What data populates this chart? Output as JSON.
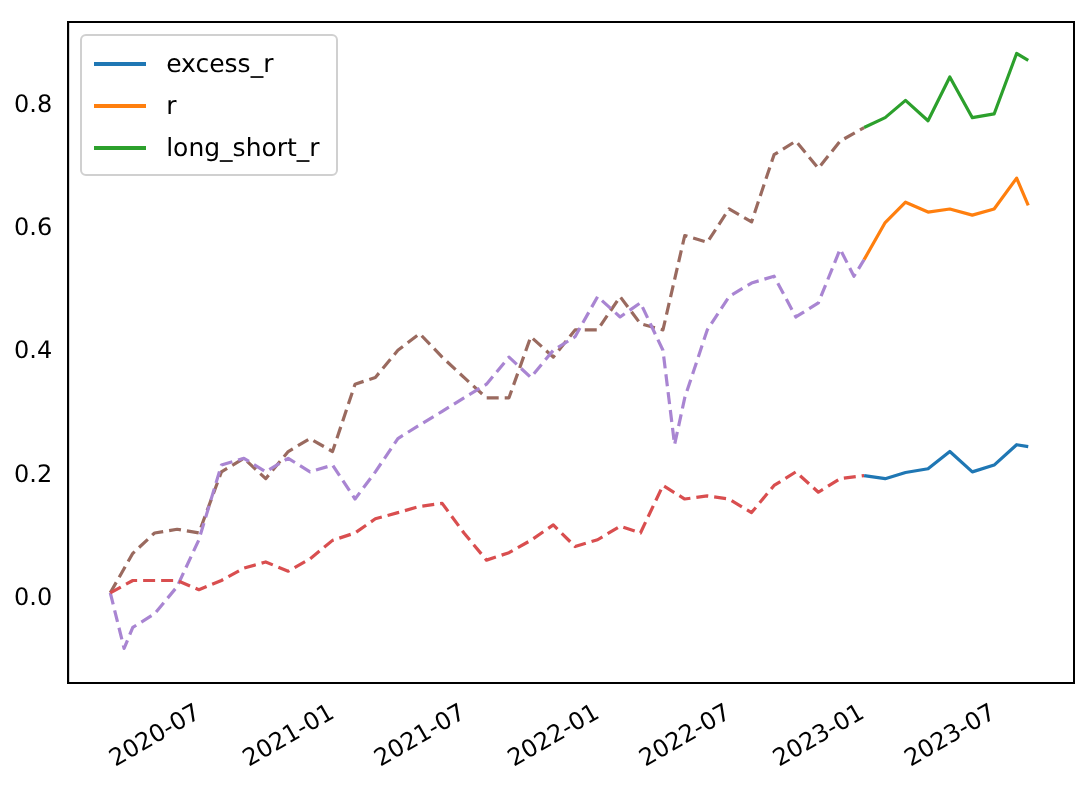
{
  "chart_data": {
    "type": "line",
    "xlim": [
      "2020-01-03",
      "2023-10-19"
    ],
    "xticks": [
      "2020-07",
      "2021-01",
      "2021-07",
      "2022-01",
      "2022-07",
      "2023-01",
      "2023-07"
    ],
    "ylim": [
      -0.136,
      0.935
    ],
    "yticks": [
      {
        "value": 0,
        "label": "0.0"
      },
      0.2,
      0.4,
      0.6,
      0.8
    ],
    "grid": false,
    "legend": "top left",
    "marker": "none",
    "series": [
      {
        "name": "excess_r",
        "color": "#1f77b4",
        "line_style": "solid",
        "x": [
          "2023-01-03",
          "2023-02",
          "2023-03",
          "2023-04",
          "2023-05",
          "2023-06",
          "2023-07",
          "2023-08",
          "2023-08-17"
        ],
        "values": [
          0.2,
          0.195,
          0.205,
          0.211,
          0.239,
          0.206,
          0.217,
          0.25,
          0.247
        ]
      },
      {
        "name": "r",
        "color": "#ff7f0e",
        "line_style": "solid",
        "x": [
          "2023-01-03",
          "2023-02",
          "2023-03",
          "2023-04",
          "2023-05",
          "2023-06",
          "2023-07",
          "2023-08",
          "2023-08-17"
        ],
        "values": [
          0.55,
          0.61,
          0.643,
          0.627,
          0.632,
          0.622,
          0.632,
          0.682,
          0.638
        ]
      },
      {
        "name": "long_short_r",
        "color": "#2ca02c",
        "line_style": "solid",
        "x": [
          "2023-01-03",
          "2023-02",
          "2023-03",
          "2023-04",
          "2023-05",
          "2023-06",
          "2023-07",
          "2023-08",
          "2023-08-17"
        ],
        "values": [
          0.764,
          0.78,
          0.808,
          0.775,
          0.846,
          0.78,
          0.786,
          0.884,
          0.873
        ]
      },
      {
        "color": "#d94e4f",
        "line_style": "dashed",
        "x": [
          "2020-03",
          "2020-04",
          "2020-05",
          "2020-06",
          "2020-07",
          "2020-08",
          "2020-09",
          "2020-10",
          "2020-11",
          "2020-12",
          "2021-01",
          "2021-02",
          "2021-03",
          "2021-04",
          "2021-05",
          "2021-06",
          "2021-07",
          "2021-08",
          "2021-09",
          "2021-10",
          "2021-11",
          "2021-12",
          "2022-01",
          "2022-02",
          "2022-03",
          "2022-04",
          "2022-05",
          "2022-06",
          "2022-07",
          "2022-08",
          "2022-09",
          "2022-10",
          "2022-11",
          "2022-12",
          "2023-01-03"
        ],
        "values": [
          0.01,
          0.03,
          0.03,
          0.03,
          0.015,
          0.03,
          0.05,
          0.06,
          0.045,
          0.065,
          0.095,
          0.107,
          0.13,
          0.14,
          0.15,
          0.155,
          0.107,
          0.063,
          0.075,
          0.095,
          0.12,
          0.085,
          0.096,
          0.118,
          0.107,
          0.184,
          0.162,
          0.167,
          0.162,
          0.14,
          0.184,
          0.206,
          0.173,
          0.195,
          0.2
        ]
      },
      {
        "color": "#a985d2",
        "line_style": "dashed",
        "x": [
          "2020-03",
          "2020-03-20",
          "2020-04",
          "2020-05",
          "2020-06",
          "2020-07",
          "2020-08",
          "2020-09",
          "2020-10",
          "2020-11",
          "2020-12",
          "2021-01",
          "2021-02",
          "2021-03",
          "2021-04",
          "2021-05",
          "2021-06",
          "2021-07",
          "2021-08",
          "2021-09",
          "2021-10",
          "2021-11",
          "2021-12",
          "2022-01",
          "2022-02",
          "2022-03",
          "2022-04",
          "2022-04-17",
          "2022-05",
          "2022-06",
          "2022-07",
          "2022-08",
          "2022-09",
          "2022-10",
          "2022-11",
          "2022-12",
          "2022-12-20",
          "2023-01-03"
        ],
        "values": [
          0.01,
          -0.08,
          -0.046,
          -0.024,
          0.02,
          0.096,
          0.217,
          0.228,
          0.206,
          0.228,
          0.206,
          0.217,
          0.162,
          0.206,
          0.26,
          0.282,
          0.304,
          0.326,
          0.348,
          0.392,
          0.359,
          0.403,
          0.425,
          0.49,
          0.457,
          0.48,
          0.403,
          0.25,
          0.326,
          0.436,
          0.49,
          0.512,
          0.523,
          0.457,
          0.48,
          0.567,
          0.523,
          0.55
        ]
      },
      {
        "color": "#9a6a5f",
        "line_style": "dashed",
        "x": [
          "2020-03",
          "2020-04",
          "2020-05",
          "2020-06",
          "2020-07",
          "2020-08",
          "2020-09",
          "2020-10",
          "2020-11",
          "2020-12",
          "2021-01",
          "2021-02",
          "2021-03",
          "2021-04",
          "2021-05",
          "2021-06",
          "2021-07",
          "2021-08",
          "2021-09",
          "2021-10",
          "2021-11",
          "2021-12",
          "2022-01",
          "2022-02",
          "2022-03",
          "2022-04",
          "2022-05",
          "2022-06",
          "2022-07",
          "2022-08",
          "2022-09",
          "2022-10",
          "2022-11",
          "2022-12",
          "2023-01-03"
        ],
        "values": [
          0.01,
          0.074,
          0.107,
          0.113,
          0.107,
          0.206,
          0.228,
          0.195,
          0.239,
          0.26,
          0.239,
          0.348,
          0.359,
          0.403,
          0.43,
          0.392,
          0.359,
          0.326,
          0.326,
          0.425,
          0.392,
          0.436,
          0.436,
          0.49,
          0.446,
          0.436,
          0.589,
          0.578,
          0.632,
          0.611,
          0.72,
          0.742,
          0.698,
          0.742,
          0.764
        ]
      }
    ]
  }
}
